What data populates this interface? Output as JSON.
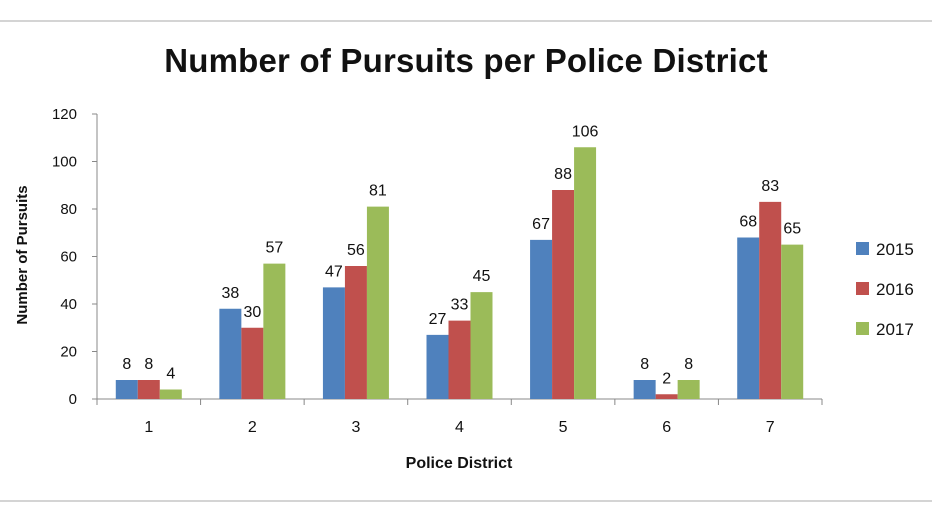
{
  "chart_data": {
    "type": "bar",
    "title": "Number of Pursuits per Police District",
    "xlabel": "Police District",
    "ylabel": "Number of Pursuits",
    "categories": [
      "1",
      "2",
      "3",
      "4",
      "5",
      "6",
      "7"
    ],
    "series": [
      {
        "name": "2015",
        "color": "#4f81bd",
        "values": [
          8,
          38,
          47,
          27,
          67,
          8,
          68
        ]
      },
      {
        "name": "2016",
        "color": "#c0504d",
        "values": [
          8,
          30,
          56,
          33,
          88,
          2,
          83
        ]
      },
      {
        "name": "2017",
        "color": "#9bbb59",
        "values": [
          4,
          57,
          81,
          45,
          106,
          8,
          65
        ]
      }
    ],
    "ylim": [
      0,
      120
    ],
    "yticks": [
      "0",
      "20",
      "40",
      "60",
      "80",
      "100",
      "120"
    ],
    "grid": false,
    "legend_position": "right"
  }
}
